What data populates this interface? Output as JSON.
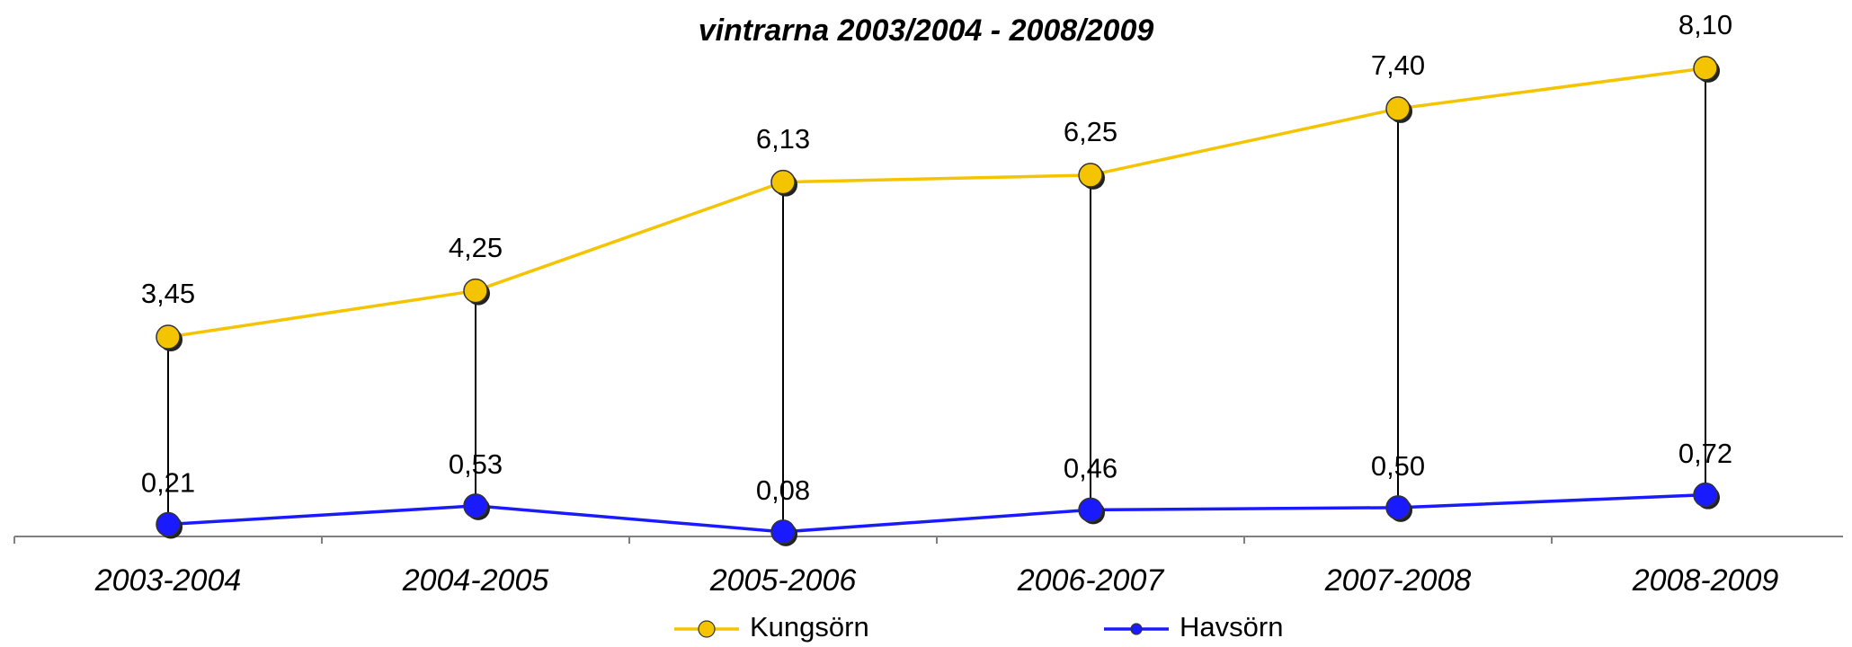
{
  "chart_data": {
    "type": "line",
    "title": "vintrarna 2003/2004 - 2008/2009",
    "categories": [
      "2003-2004",
      "2004-2005",
      "2005-2006",
      "2006-2007",
      "2007-2008",
      "2008-2009"
    ],
    "series": [
      {
        "name": "Kungsörn",
        "color": "#f5c400",
        "values": [
          3.45,
          4.25,
          6.13,
          6.25,
          7.4,
          8.1
        ],
        "value_labels": [
          "3,45",
          "4,25",
          "6,13",
          "6,25",
          "7,40",
          "8,10"
        ]
      },
      {
        "name": "Havsörn",
        "color": "#1a1aff",
        "values": [
          0.21,
          0.53,
          0.08,
          0.46,
          0.5,
          0.72
        ],
        "value_labels": [
          "0,21",
          "0,53",
          "0,08",
          "0,46",
          "0,50",
          "0,72"
        ]
      }
    ],
    "ylim": [
      0,
      9
    ]
  }
}
